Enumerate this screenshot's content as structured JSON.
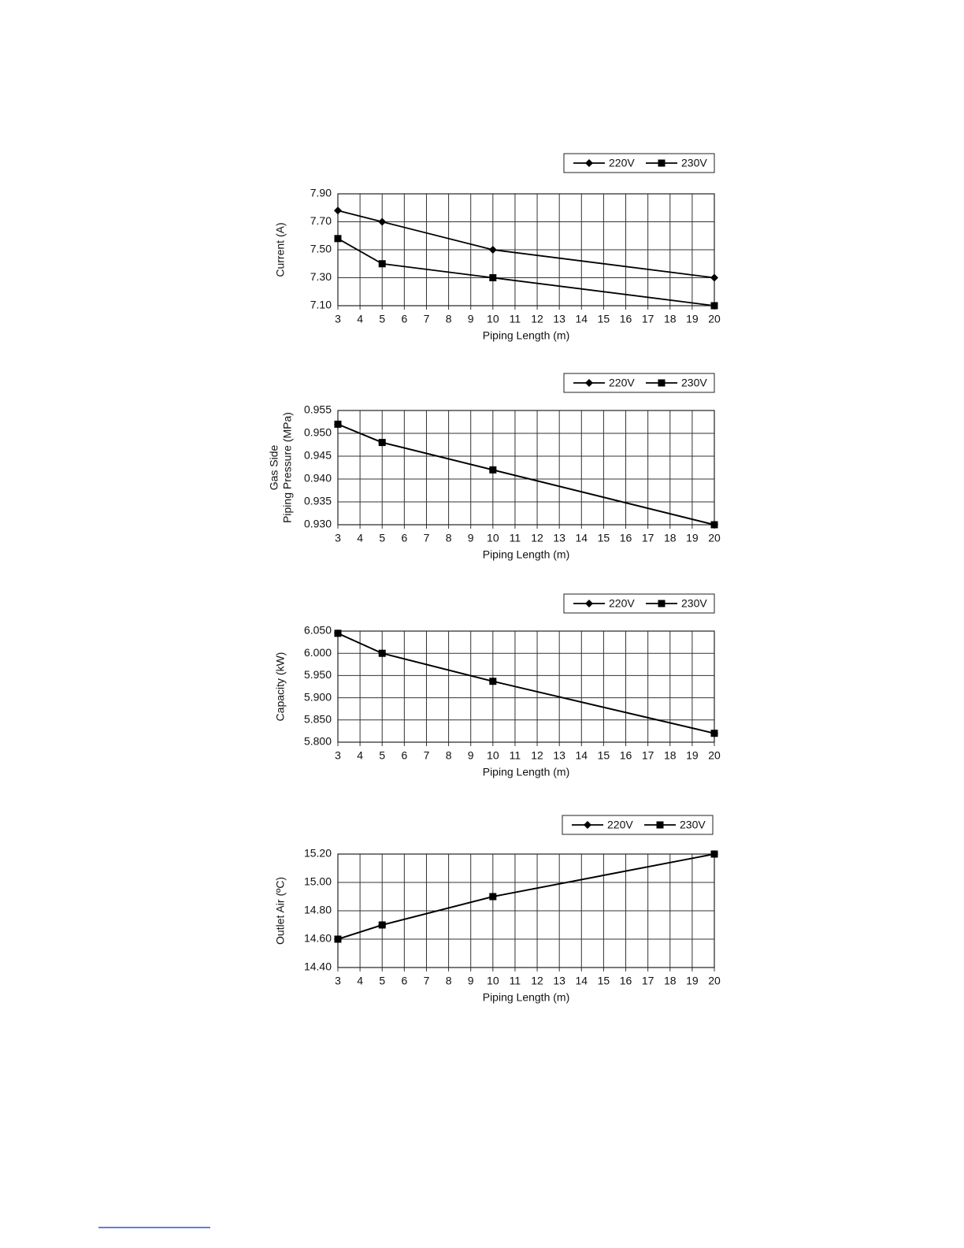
{
  "chart_data": [
    {
      "type": "line",
      "ylabel": "Current (A)",
      "xlabel": "Piping Length (m)",
      "x": [
        3,
        5,
        10,
        20
      ],
      "xlim": [
        3,
        20
      ],
      "xticks": [
        3,
        4,
        5,
        6,
        7,
        8,
        9,
        10,
        11,
        12,
        13,
        14,
        15,
        16,
        17,
        18,
        19,
        20
      ],
      "ylim": [
        7.1,
        7.9
      ],
      "yticks": [
        {
          "value": 7.1,
          "label": "7.10"
        },
        {
          "value": 7.3,
          "label": "7.30"
        },
        {
          "value": 7.5,
          "label": "7.50"
        },
        {
          "value": 7.7,
          "label": "7.70"
        },
        {
          "value": 7.9,
          "label": "7.90"
        }
      ],
      "grid": true,
      "series": [
        {
          "name": "220V",
          "color": "#000000",
          "marker": "diamond",
          "values": [
            7.78,
            7.7,
            7.5,
            7.3
          ]
        },
        {
          "name": "230V",
          "color": "#000000",
          "marker": "square",
          "values": [
            7.58,
            7.4,
            7.3,
            7.1
          ]
        }
      ]
    },
    {
      "type": "line",
      "ylabel": [
        "Gas Side",
        "Piping Pressure (MPa)"
      ],
      "xlabel": "Piping Length (m)",
      "x": [
        3,
        5,
        10,
        20
      ],
      "xlim": [
        3,
        20
      ],
      "xticks": [
        3,
        4,
        5,
        6,
        7,
        8,
        9,
        10,
        11,
        12,
        13,
        14,
        15,
        16,
        17,
        18,
        19,
        20
      ],
      "ylim": [
        0.93,
        0.955
      ],
      "yticks": [
        {
          "value": 0.93,
          "label": "0.930"
        },
        {
          "value": 0.935,
          "label": "0.935"
        },
        {
          "value": 0.94,
          "label": "0.940"
        },
        {
          "value": 0.945,
          "label": "0.945"
        },
        {
          "value": 0.95,
          "label": "0.950"
        },
        {
          "value": 0.955,
          "label": "0.955"
        }
      ],
      "grid": true,
      "series": [
        {
          "name": "220V",
          "color": "#000000",
          "marker": "diamond",
          "values": [
            0.952,
            0.948,
            0.942,
            0.93
          ]
        },
        {
          "name": "230V",
          "color": "#000000",
          "marker": "square",
          "values": [
            0.952,
            0.948,
            0.942,
            0.93
          ]
        }
      ]
    },
    {
      "type": "line",
      "ylabel": "Capacity (kW)",
      "xlabel": "Piping Length (m)",
      "x": [
        3,
        5,
        10,
        20
      ],
      "xlim": [
        3,
        20
      ],
      "xticks": [
        3,
        4,
        5,
        6,
        7,
        8,
        9,
        10,
        11,
        12,
        13,
        14,
        15,
        16,
        17,
        18,
        19,
        20
      ],
      "ylim": [
        5.8,
        6.05
      ],
      "yticks": [
        {
          "value": 5.8,
          "label": "5.800"
        },
        {
          "value": 5.85,
          "label": "5.850"
        },
        {
          "value": 5.9,
          "label": "5.900"
        },
        {
          "value": 5.95,
          "label": "5.950"
        },
        {
          "value": 6.0,
          "label": "6.000"
        },
        {
          "value": 6.05,
          "label": "6.050"
        }
      ],
      "grid": true,
      "series": [
        {
          "name": "220V",
          "color": "#000000",
          "marker": "diamond",
          "values": [
            6.045,
            6.0,
            5.937,
            5.82
          ]
        },
        {
          "name": "230V",
          "color": "#000000",
          "marker": "square",
          "values": [
            6.045,
            6.0,
            5.937,
            5.82
          ]
        }
      ]
    },
    {
      "type": "line",
      "ylabel": "Outlet Air (ºC)",
      "xlabel": "Piping Length (m)",
      "x": [
        3,
        5,
        10,
        20
      ],
      "xlim": [
        3,
        20
      ],
      "xticks": [
        3,
        4,
        5,
        6,
        7,
        8,
        9,
        10,
        11,
        12,
        13,
        14,
        15,
        16,
        17,
        18,
        19,
        20
      ],
      "ylim": [
        14.4,
        15.2
      ],
      "yticks": [
        {
          "value": 14.4,
          "label": "14.40"
        },
        {
          "value": 14.6,
          "label": "14.60"
        },
        {
          "value": 14.8,
          "label": "14.80"
        },
        {
          "value": 15.0,
          "label": "15.00"
        },
        {
          "value": 15.2,
          "label": "15.20"
        }
      ],
      "grid": true,
      "series": [
        {
          "name": "220V",
          "color": "#000000",
          "marker": "diamond",
          "values": [
            14.6,
            14.7,
            14.9,
            15.2
          ]
        },
        {
          "name": "230V",
          "color": "#000000",
          "marker": "square",
          "values": [
            14.6,
            14.7,
            14.9,
            15.2
          ]
        }
      ]
    }
  ]
}
